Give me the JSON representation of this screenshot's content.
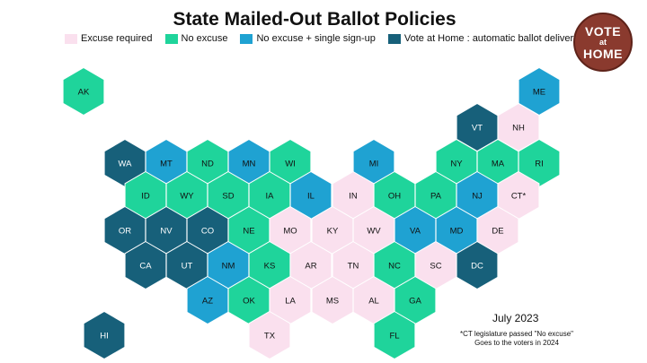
{
  "title": "State Mailed-Out Ballot Policies",
  "legend": [
    {
      "key": "excuse",
      "label": "Excuse required",
      "color": "#fae0ee"
    },
    {
      "key": "noexcuse",
      "label": "No excuse",
      "color": "#1fd49b"
    },
    {
      "key": "signup",
      "label": "No excuse + single sign-up",
      "color": "#1fa2d2"
    },
    {
      "key": "vah",
      "label": "Vote at Home : automatic ballot delivery",
      "color": "#17607a"
    }
  ],
  "logo": {
    "line1": "VOTE",
    "line2": "at",
    "line3": "HOME"
  },
  "date": "July 2023",
  "note": {
    "line1": "*CT legislature passed \"No excuse\"",
    "line2": "Goes to the voters in 2024"
  },
  "states": [
    {
      "code": "AK",
      "policy": "noexcuse"
    },
    {
      "code": "ME",
      "policy": "signup"
    },
    {
      "code": "VT",
      "policy": "vah"
    },
    {
      "code": "NH",
      "policy": "excuse"
    },
    {
      "code": "WA",
      "policy": "vah"
    },
    {
      "code": "MT",
      "policy": "signup"
    },
    {
      "code": "ND",
      "policy": "noexcuse"
    },
    {
      "code": "MN",
      "policy": "signup"
    },
    {
      "code": "WI",
      "policy": "noexcuse"
    },
    {
      "code": "MI",
      "policy": "signup"
    },
    {
      "code": "NY",
      "policy": "noexcuse"
    },
    {
      "code": "MA",
      "policy": "noexcuse"
    },
    {
      "code": "RI",
      "policy": "noexcuse"
    },
    {
      "code": "ID",
      "policy": "noexcuse"
    },
    {
      "code": "WY",
      "policy": "noexcuse"
    },
    {
      "code": "SD",
      "policy": "noexcuse"
    },
    {
      "code": "IA",
      "policy": "noexcuse"
    },
    {
      "code": "IL",
      "policy": "signup"
    },
    {
      "code": "IN",
      "policy": "excuse"
    },
    {
      "code": "OH",
      "policy": "noexcuse"
    },
    {
      "code": "PA",
      "policy": "noexcuse"
    },
    {
      "code": "NJ",
      "policy": "signup"
    },
    {
      "code": "CT*",
      "policy": "excuse"
    },
    {
      "code": "OR",
      "policy": "vah"
    },
    {
      "code": "NV",
      "policy": "vah"
    },
    {
      "code": "CO",
      "policy": "vah"
    },
    {
      "code": "NE",
      "policy": "noexcuse"
    },
    {
      "code": "MO",
      "policy": "excuse"
    },
    {
      "code": "KY",
      "policy": "excuse"
    },
    {
      "code": "WV",
      "policy": "excuse"
    },
    {
      "code": "VA",
      "policy": "signup"
    },
    {
      "code": "MD",
      "policy": "signup"
    },
    {
      "code": "DE",
      "policy": "excuse"
    },
    {
      "code": "CA",
      "policy": "vah"
    },
    {
      "code": "UT",
      "policy": "vah"
    },
    {
      "code": "NM",
      "policy": "signup"
    },
    {
      "code": "KS",
      "policy": "noexcuse"
    },
    {
      "code": "AR",
      "policy": "excuse"
    },
    {
      "code": "TN",
      "policy": "excuse"
    },
    {
      "code": "NC",
      "policy": "noexcuse"
    },
    {
      "code": "SC",
      "policy": "excuse"
    },
    {
      "code": "DC",
      "policy": "vah"
    },
    {
      "code": "AZ",
      "policy": "signup"
    },
    {
      "code": "OK",
      "policy": "noexcuse"
    },
    {
      "code": "LA",
      "policy": "excuse"
    },
    {
      "code": "MS",
      "policy": "excuse"
    },
    {
      "code": "AL",
      "policy": "excuse"
    },
    {
      "code": "GA",
      "policy": "noexcuse"
    },
    {
      "code": "HI",
      "policy": "vah"
    },
    {
      "code": "TX",
      "policy": "excuse"
    },
    {
      "code": "FL",
      "policy": "noexcuse"
    }
  ]
}
